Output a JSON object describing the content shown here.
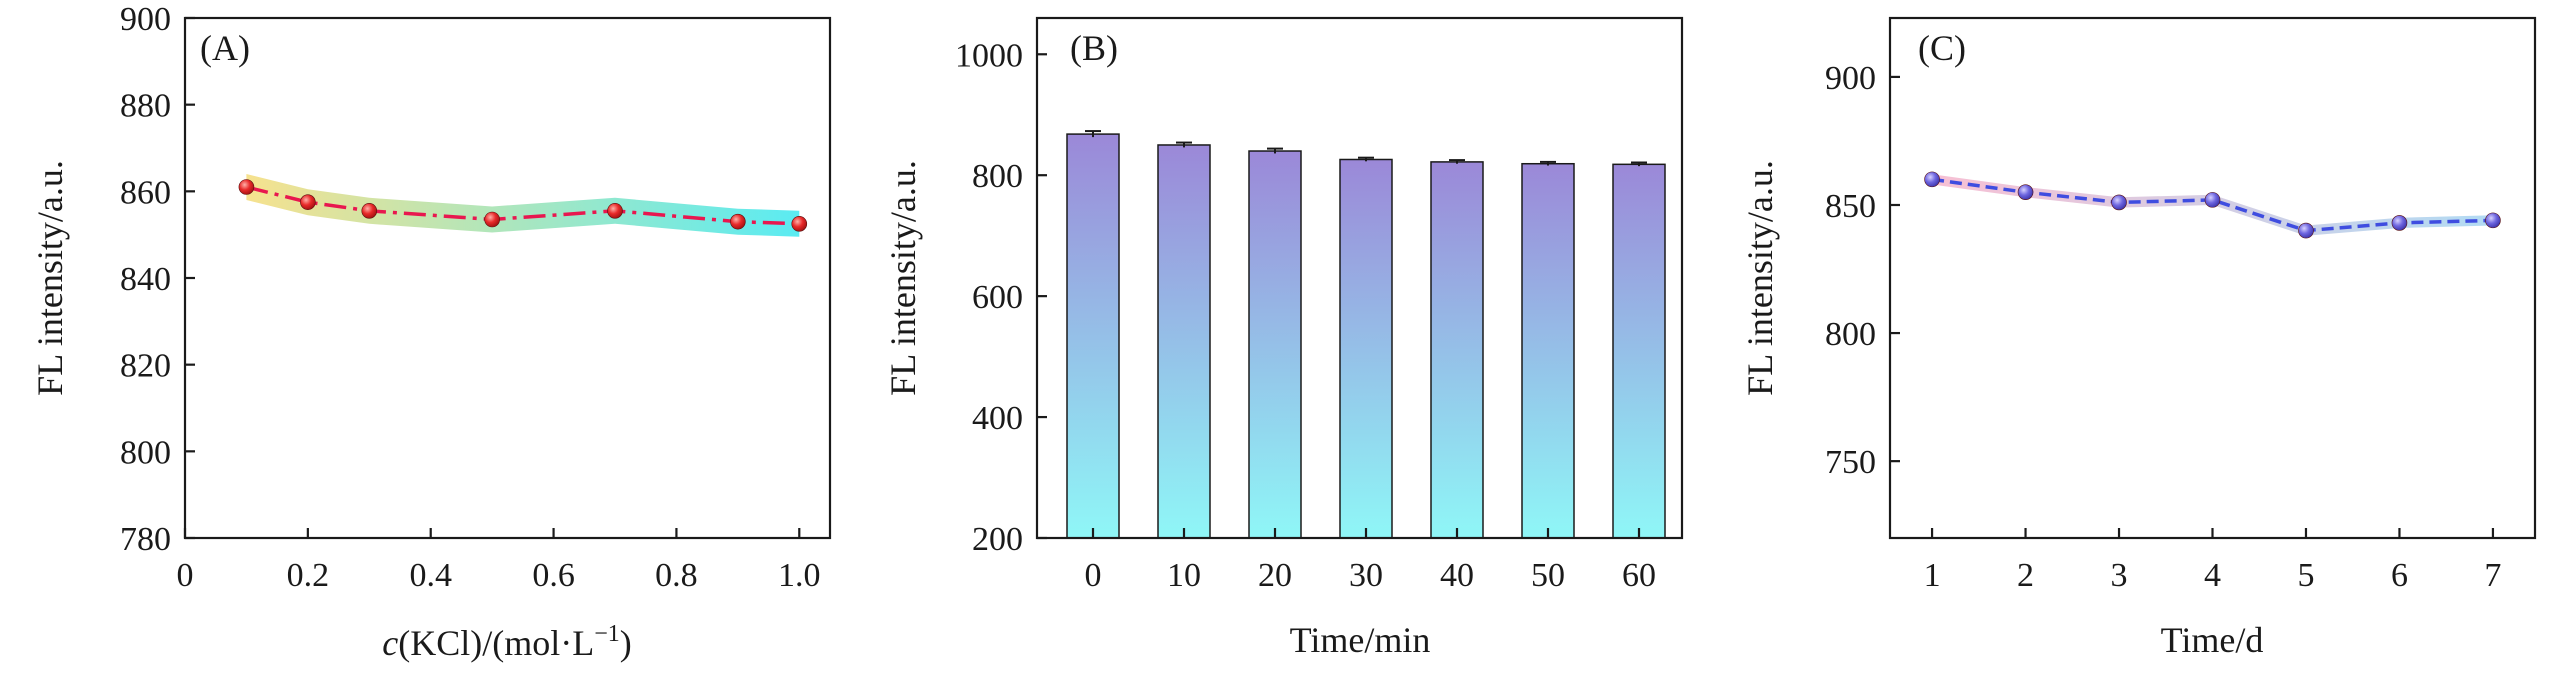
{
  "chart_data": [
    {
      "type": "line",
      "panel_label": "(A)",
      "x": [
        0.1,
        0.2,
        0.3,
        0.5,
        0.7,
        0.9,
        1.0
      ],
      "series": [
        {
          "name": "FL intensity",
          "values": [
            861,
            857.5,
            855.5,
            853.5,
            855.5,
            853,
            852.5
          ]
        }
      ],
      "xlabel": {
        "italic": "c",
        "rest": "(KCl)/(mol·L",
        "sup": "−1",
        "close": ")"
      },
      "ylabel": "FL intensity/a.u.",
      "xlim": [
        0,
        1.05
      ],
      "ylim": [
        780,
        900
      ],
      "xticks": [
        0,
        0.2,
        0.4,
        0.6,
        0.8,
        1.0
      ],
      "xtick_labels": [
        "0",
        "0.2",
        "0.4",
        "0.6",
        "0.8",
        "1.0"
      ],
      "yticks": [
        780,
        800,
        820,
        840,
        860,
        880,
        900
      ],
      "ytick_labels": [
        "780",
        "800",
        "820",
        "840",
        "860",
        "880",
        "900"
      ],
      "error_band": 3,
      "colors": {
        "line": "#e8174f",
        "marker": "#e02020",
        "band_start": "#f5dc7a",
        "band_end": "#3de8f0"
      }
    },
    {
      "type": "bar",
      "panel_label": "(B)",
      "categories": [
        "0",
        "10",
        "20",
        "30",
        "40",
        "50",
        "60"
      ],
      "values": [
        868,
        850,
        840,
        826,
        822,
        819,
        818
      ],
      "errors": [
        5,
        4,
        4,
        3,
        3,
        3,
        3
      ],
      "xlabel": "Time/min",
      "ylabel": "FL intensity/a.u.",
      "ylim": [
        200,
        1060
      ],
      "yticks": [
        200,
        400,
        600,
        800,
        1000
      ],
      "ytick_labels": [
        "200",
        "400",
        "600",
        "800",
        "1000"
      ],
      "colors": {
        "bar_top": "#9b88d8",
        "bar_bottom": "#8ff7f7"
      }
    },
    {
      "type": "line",
      "panel_label": "(C)",
      "x": [
        1,
        2,
        3,
        4,
        5,
        6,
        7
      ],
      "series": [
        {
          "name": "FL intensity",
          "values": [
            860,
            855,
            851,
            852,
            840,
            843,
            844
          ]
        }
      ],
      "xlabel": "Time/d",
      "ylabel": "FL intensity/a.u.",
      "xlim": [
        0.55,
        7.45
      ],
      "ylim": [
        720,
        923
      ],
      "xticks": [
        1,
        2,
        3,
        4,
        5,
        6,
        7
      ],
      "xtick_labels": [
        "1",
        "2",
        "3",
        "4",
        "5",
        "6",
        "7"
      ],
      "yticks": [
        750,
        800,
        850,
        900
      ],
      "ytick_labels": [
        "750",
        "800",
        "850",
        "900"
      ],
      "error_band": 2,
      "colors": {
        "line": "#3f4de0",
        "marker": "#6a63dc",
        "band_start": "#f7b9cf",
        "band_end": "#a9d7f2"
      }
    }
  ]
}
